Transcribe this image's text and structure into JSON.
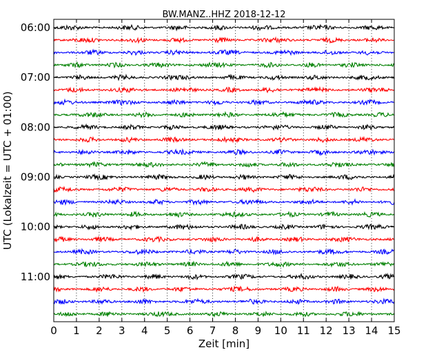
{
  "chart_data": {
    "type": "line",
    "title": "BW.MANZ..HHZ 2018-12-12",
    "xlabel": "Zeit  [min]",
    "ylabel": "UTC (Lokalzeit = UTC + 01:00)",
    "xlim": [
      0,
      15
    ],
    "x_ticks": [
      "0",
      "1",
      "2",
      "3",
      "4",
      "5",
      "6",
      "7",
      "8",
      "9",
      "10",
      "11",
      "12",
      "13",
      "14",
      "15"
    ],
    "y_ticks": [
      "06:00",
      "07:00",
      "08:00",
      "09:00",
      "10:00",
      "11:00"
    ],
    "grid": "vertical-dotted",
    "trace_interval_min": 15,
    "start_time": "06:00",
    "trace_colors": [
      "#000000",
      "#ff0000",
      "#0000ff",
      "#008000"
    ],
    "trace_count": 24
  }
}
